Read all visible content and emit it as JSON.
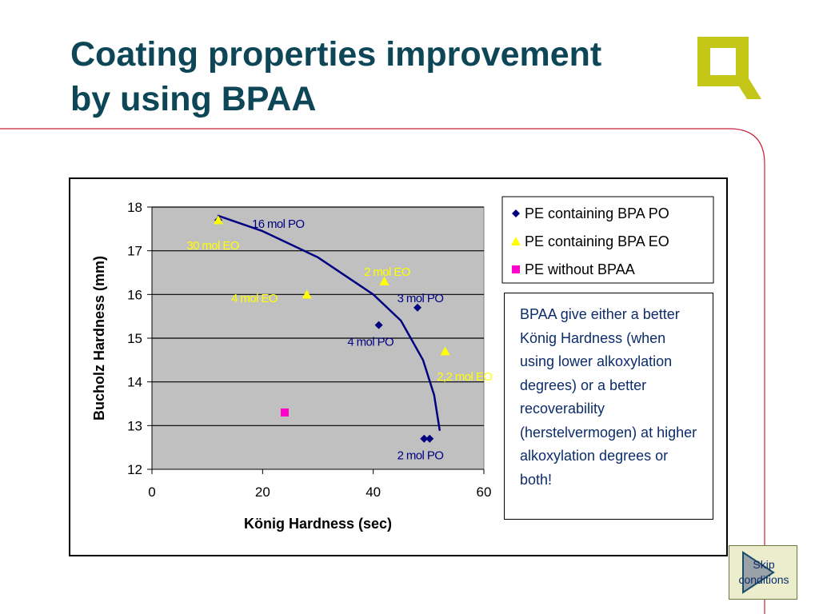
{
  "slide": {
    "title_line1": "Coating properties improvement",
    "title_line2": "by using BPAA",
    "note": "BPAA give either a better König Hardness (when using lower alkoxylation degrees) or a better recoverability (herstelvermogen) at higher alkoxylation degrees or both!",
    "skip_line1": "Skip",
    "skip_line2": "conditions",
    "logo_icon": "q-logo-icon",
    "skip_icon": "play-triangle-icon"
  },
  "colors": {
    "title": "#0d4657",
    "logo": "#c3c616",
    "accent_line": "#c6213a",
    "plot_bg": "#c0c0c0",
    "po_series": "#000080",
    "eo_series": "#ffff00",
    "none_series": "#ff00cc",
    "curve": "#000080",
    "note_text": "#0d2c6b"
  },
  "chart_data": {
    "type": "scatter",
    "xlabel": "König Hardness (sec)",
    "ylabel": "Bucholz Hardness (mm)",
    "xlim": [
      0,
      60
    ],
    "ylim": [
      12,
      18
    ],
    "x_ticks": [
      "0",
      "20",
      "40",
      "60"
    ],
    "y_ticks": [
      "12",
      "13",
      "14",
      "15",
      "16",
      "17",
      "18"
    ],
    "grid": "horizontal",
    "legend_position": "top-right",
    "series": [
      {
        "name": "PE containing BPA PO",
        "marker": "diamond",
        "color": "#000080",
        "points": [
          {
            "x": 12,
            "y": 17.7
          },
          {
            "x": 48,
            "y": 15.7
          },
          {
            "x": 41,
            "y": 15.3
          },
          {
            "x": 49.2,
            "y": 12.7
          },
          {
            "x": 50.2,
            "y": 12.7
          }
        ]
      },
      {
        "name": "PE containing BPA EO",
        "marker": "triangle",
        "color": "#ffff00",
        "points": [
          {
            "x": 12,
            "y": 17.7
          },
          {
            "x": 42,
            "y": 16.3
          },
          {
            "x": 28,
            "y": 16.0
          },
          {
            "x": 53,
            "y": 14.7
          }
        ]
      },
      {
        "name": "PE without BPAA",
        "marker": "square",
        "color": "#ff00cc",
        "points": [
          {
            "x": 24,
            "y": 13.3
          }
        ]
      }
    ],
    "trend_curve": [
      {
        "x": 12,
        "y": 17.8
      },
      {
        "x": 20,
        "y": 17.45
      },
      {
        "x": 30,
        "y": 16.85
      },
      {
        "x": 40,
        "y": 16.0
      },
      {
        "x": 45,
        "y": 15.4
      },
      {
        "x": 49,
        "y": 14.5
      },
      {
        "x": 51,
        "y": 13.7
      },
      {
        "x": 52,
        "y": 12.9
      }
    ],
    "annotations": [
      {
        "text": "16 mol PO",
        "x": 22.8,
        "y": 17.6,
        "color": "#000080"
      },
      {
        "text": "30 mol EO",
        "x": 11,
        "y": 17.1,
        "color": "#ffff00"
      },
      {
        "text": "2 mol EO",
        "x": 42.5,
        "y": 16.5,
        "color": "#ffff00"
      },
      {
        "text": "4 mol EO",
        "x": 18.5,
        "y": 15.9,
        "color": "#ffff00"
      },
      {
        "text": "3 mol PO",
        "x": 48.5,
        "y": 15.9,
        "color": "#000080"
      },
      {
        "text": "4 mol PO",
        "x": 39.5,
        "y": 14.9,
        "color": "#000080"
      },
      {
        "text": "2,2 mol EO",
        "x": 56.5,
        "y": 14.1,
        "color": "#ffff00"
      },
      {
        "text": "2 mol PO",
        "x": 48.5,
        "y": 12.3,
        "color": "#000080"
      }
    ]
  }
}
